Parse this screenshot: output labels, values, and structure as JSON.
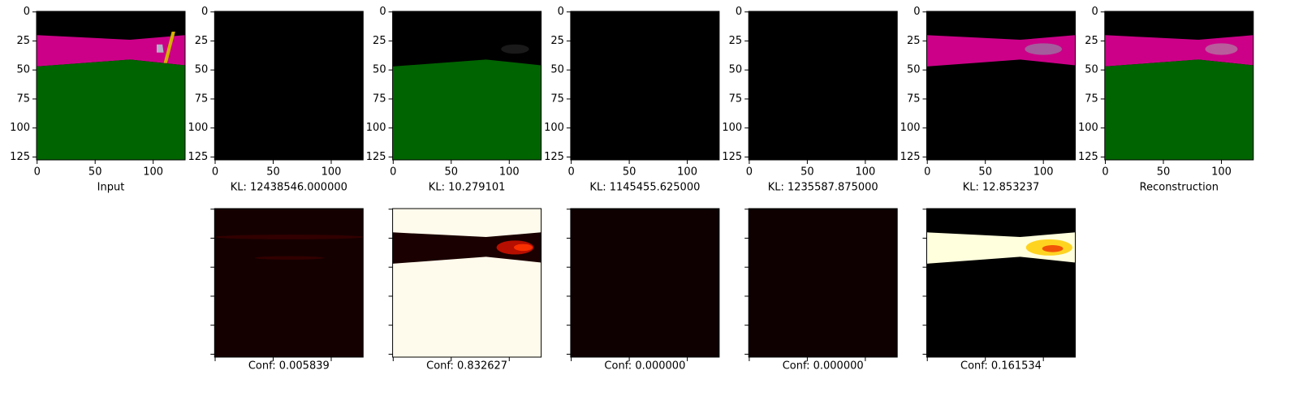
{
  "axes": {
    "xlim": [
      -0.5,
      127.5
    ],
    "ylim": [
      127.5,
      -0.5
    ],
    "xticks": [
      0,
      50,
      100
    ],
    "yticks": [
      0,
      25,
      50,
      75,
      100,
      125
    ]
  },
  "top_row": [
    {
      "caption": "Input"
    },
    {
      "caption": "KL: 12438546.000000"
    },
    {
      "caption": "KL: 10.279101"
    },
    {
      "caption": "KL: 1145455.625000"
    },
    {
      "caption": "KL: 1235587.875000"
    },
    {
      "caption": "KL: 12.853237"
    },
    {
      "caption": "Reconstruction"
    }
  ],
  "bottom_row": [
    {
      "caption": "Conf: 0.005839"
    },
    {
      "caption": "Conf: 0.832627"
    },
    {
      "caption": "Conf: 0.000000"
    },
    {
      "caption": "Conf: 0.000000"
    },
    {
      "caption": "Conf: 0.161534"
    }
  ]
}
